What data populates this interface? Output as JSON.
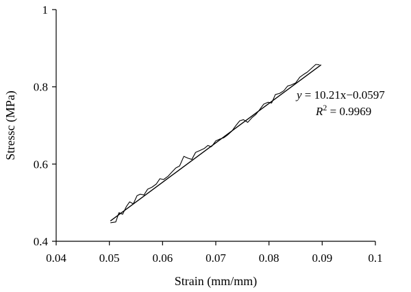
{
  "chart_data": {
    "type": "line",
    "xlabel": "Strain (mm/mm)",
    "ylabel": "Stressc (MPa)",
    "xlim": [
      0.04,
      0.1
    ],
    "ylim": [
      0.4,
      1.0
    ],
    "xticks": [
      "0.04",
      "0.05",
      "0.06",
      "0.07",
      "0.08",
      "0.09",
      "0.1"
    ],
    "yticks": [
      "0.4",
      "0.6",
      "0.8",
      "1"
    ],
    "grid": false,
    "legend": "none",
    "series": [
      {
        "kind": "measured",
        "x": [
          0.0502,
          0.0512,
          0.0518,
          0.0525,
          0.0532,
          0.0538,
          0.0545,
          0.0552,
          0.0558,
          0.0565,
          0.0572,
          0.058,
          0.0588,
          0.0595,
          0.0602,
          0.061,
          0.0618,
          0.0625,
          0.0632,
          0.064,
          0.0648,
          0.0655,
          0.0662,
          0.067,
          0.0678,
          0.0685,
          0.0692,
          0.07,
          0.0708,
          0.0715,
          0.0722,
          0.073,
          0.0738,
          0.0745,
          0.0752,
          0.076,
          0.0768,
          0.0775,
          0.0782,
          0.079,
          0.0798,
          0.0805,
          0.0812,
          0.082,
          0.0828,
          0.0835,
          0.0842,
          0.085,
          0.0858,
          0.0865,
          0.0872,
          0.088,
          0.0888,
          0.0895
        ],
        "y": [
          0.448,
          0.45,
          0.474,
          0.47,
          0.49,
          0.502,
          0.497,
          0.518,
          0.522,
          0.52,
          0.535,
          0.54,
          0.548,
          0.562,
          0.56,
          0.568,
          0.58,
          0.59,
          0.595,
          0.62,
          0.615,
          0.612,
          0.63,
          0.635,
          0.64,
          0.648,
          0.645,
          0.66,
          0.665,
          0.668,
          0.675,
          0.685,
          0.7,
          0.712,
          0.715,
          0.708,
          0.72,
          0.728,
          0.74,
          0.755,
          0.76,
          0.758,
          0.78,
          0.783,
          0.79,
          0.802,
          0.805,
          0.81,
          0.825,
          0.832,
          0.838,
          0.848,
          0.858,
          0.857
        ]
      },
      {
        "kind": "fit",
        "x": [
          0.0502,
          0.0898
        ],
        "y": [
          0.4528,
          0.857
        ]
      }
    ],
    "annotations": {
      "equation": "y = 10.21x−0.0597",
      "r_squared": "R2 = 0.9969"
    },
    "colors": {
      "line": "#000000",
      "background": "#ffffff"
    }
  }
}
